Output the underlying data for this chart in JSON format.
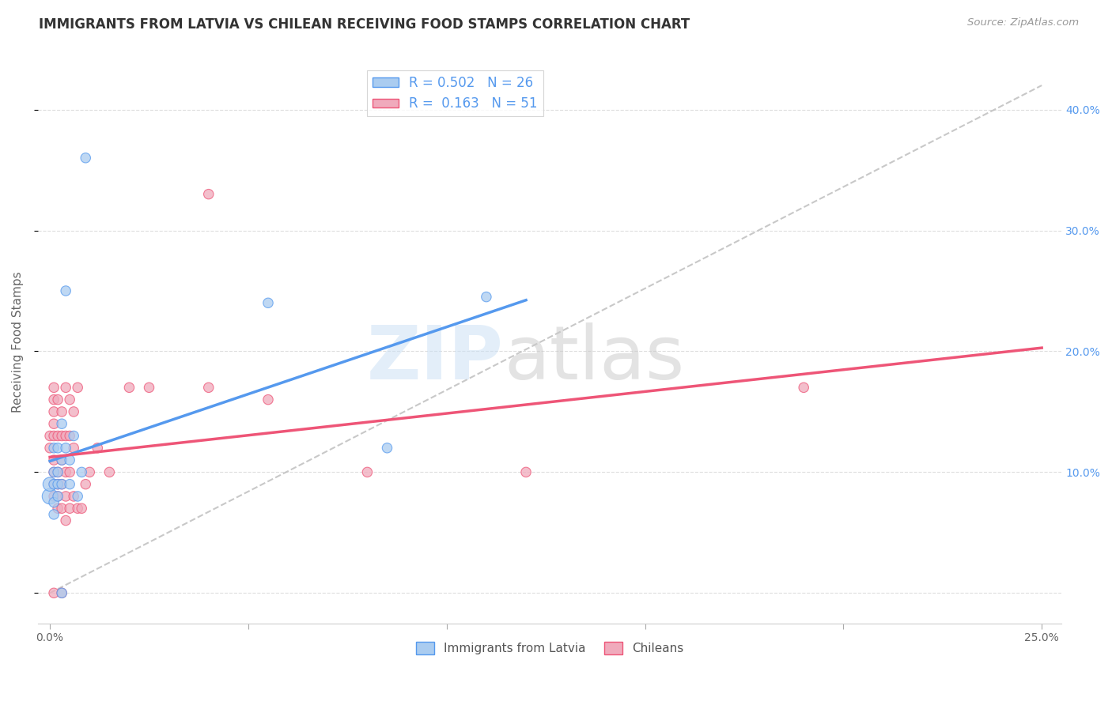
{
  "title": "IMMIGRANTS FROM LATVIA VS CHILEAN RECEIVING FOOD STAMPS CORRELATION CHART",
  "source": "Source: ZipAtlas.com",
  "ylabel": "Receiving Food Stamps",
  "xlim": [
    0.0,
    0.25
  ],
  "ylim": [
    -0.025,
    0.44
  ],
  "legend_r_latvia": "0.502",
  "legend_n_latvia": "26",
  "legend_r_chilean": "0.163",
  "legend_n_chilean": "51",
  "color_latvia": "#aaccf0",
  "color_chilean": "#f0aabc",
  "line_color_latvia": "#5599ee",
  "line_color_chilean": "#ee5577",
  "dashed_line_color": "#bbbbbb",
  "background_color": "#ffffff",
  "title_fontsize": 12,
  "axis_label_fontsize": 11,
  "tick_fontsize": 10,
  "legend_fontsize": 12,
  "latvia_x": [
    0.0,
    0.0,
    0.001,
    0.001,
    0.001,
    0.001,
    0.001,
    0.002,
    0.002,
    0.002,
    0.002,
    0.003,
    0.003,
    0.003,
    0.004,
    0.004,
    0.005,
    0.005,
    0.006,
    0.007,
    0.008,
    0.009,
    0.055,
    0.085,
    0.11,
    0.003
  ],
  "latvia_y": [
    0.08,
    0.09,
    0.065,
    0.075,
    0.09,
    0.1,
    0.12,
    0.08,
    0.09,
    0.1,
    0.12,
    0.09,
    0.11,
    0.14,
    0.12,
    0.25,
    0.11,
    0.09,
    0.13,
    0.08,
    0.1,
    0.36,
    0.24,
    0.12,
    0.245,
    0.0
  ],
  "latvia_sizes": [
    200,
    160,
    80,
    80,
    80,
    80,
    80,
    80,
    80,
    80,
    80,
    80,
    80,
    80,
    80,
    80,
    80,
    80,
    80,
    80,
    80,
    80,
    80,
    80,
    80,
    80
  ],
  "chilean_x": [
    0.0,
    0.0,
    0.001,
    0.001,
    0.001,
    0.001,
    0.001,
    0.001,
    0.001,
    0.001,
    0.001,
    0.002,
    0.002,
    0.002,
    0.002,
    0.002,
    0.002,
    0.003,
    0.003,
    0.003,
    0.003,
    0.003,
    0.004,
    0.004,
    0.004,
    0.004,
    0.004,
    0.005,
    0.005,
    0.005,
    0.005,
    0.006,
    0.006,
    0.006,
    0.007,
    0.007,
    0.008,
    0.009,
    0.01,
    0.012,
    0.015,
    0.02,
    0.025,
    0.04,
    0.04,
    0.055,
    0.08,
    0.12,
    0.19,
    0.001,
    0.003
  ],
  "chilean_y": [
    0.12,
    0.13,
    0.08,
    0.09,
    0.1,
    0.11,
    0.13,
    0.14,
    0.15,
    0.16,
    0.17,
    0.07,
    0.08,
    0.09,
    0.1,
    0.13,
    0.16,
    0.07,
    0.09,
    0.11,
    0.13,
    0.15,
    0.06,
    0.08,
    0.1,
    0.13,
    0.17,
    0.07,
    0.1,
    0.13,
    0.16,
    0.08,
    0.12,
    0.15,
    0.07,
    0.17,
    0.07,
    0.09,
    0.1,
    0.12,
    0.1,
    0.17,
    0.17,
    0.17,
    0.33,
    0.16,
    0.1,
    0.1,
    0.17,
    0.0,
    0.0
  ],
  "chilean_sizes": [
    80,
    80,
    80,
    80,
    80,
    80,
    80,
    80,
    80,
    80,
    80,
    80,
    80,
    80,
    80,
    80,
    80,
    80,
    80,
    80,
    80,
    80,
    80,
    80,
    80,
    80,
    80,
    80,
    80,
    80,
    80,
    80,
    80,
    80,
    80,
    80,
    80,
    80,
    80,
    80,
    80,
    80,
    80,
    80,
    80,
    80,
    80,
    80,
    80,
    80,
    80
  ],
  "x_tick_positions": [
    0.0,
    0.05,
    0.1,
    0.15,
    0.2,
    0.25
  ],
  "x_tick_labels_show": [
    "0.0%",
    "",
    "",
    "",
    "",
    "25.0%"
  ],
  "y_ticks": [
    0.0,
    0.1,
    0.2,
    0.3,
    0.4
  ],
  "y_tick_labels_right": [
    "",
    "10.0%",
    "20.0%",
    "30.0%",
    "40.0%"
  ]
}
